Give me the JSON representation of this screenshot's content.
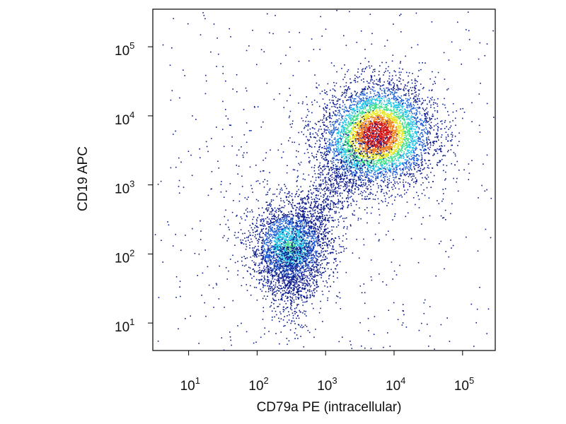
{
  "chart_data": {
    "type": "scatter",
    "title": "",
    "xlabel": "CD79a PE (intracellular)",
    "ylabel": "CD19 APC",
    "x_scale": "log",
    "y_scale": "log",
    "xlim": [
      3,
      300000
    ],
    "ylim": [
      4,
      350000
    ],
    "grid": false,
    "legend": "none",
    "x_ticks": [
      {
        "value": 10,
        "base": "10",
        "exp": "1"
      },
      {
        "value": 100,
        "base": "10",
        "exp": "2"
      },
      {
        "value": 1000,
        "base": "10",
        "exp": "3"
      },
      {
        "value": 10000,
        "base": "10",
        "exp": "4"
      },
      {
        "value": 100000,
        "base": "10",
        "exp": "5"
      }
    ],
    "y_ticks": [
      {
        "value": 10,
        "base": "10",
        "exp": "1"
      },
      {
        "value": 100,
        "base": "10",
        "exp": "2"
      },
      {
        "value": 1000,
        "base": "10",
        "exp": "3"
      },
      {
        "value": 10000,
        "base": "10",
        "exp": "4"
      },
      {
        "value": 100000,
        "base": "10",
        "exp": "5"
      }
    ],
    "density_colormap": [
      "#0a1a8c",
      "#1f5fd6",
      "#22c2e6",
      "#3fe08a",
      "#e6e62a",
      "#f07d1a",
      "#d01515"
    ],
    "populations": [
      {
        "x_center": 5500,
        "y_center": 5500,
        "x_spread_decades": 0.42,
        "y_spread_decades": 0.38,
        "relative_density": 1.0
      },
      {
        "x_center": 300,
        "y_center": 130,
        "x_spread_decades": 0.3,
        "y_spread_decades": 0.32,
        "relative_density": 0.45
      }
    ]
  }
}
